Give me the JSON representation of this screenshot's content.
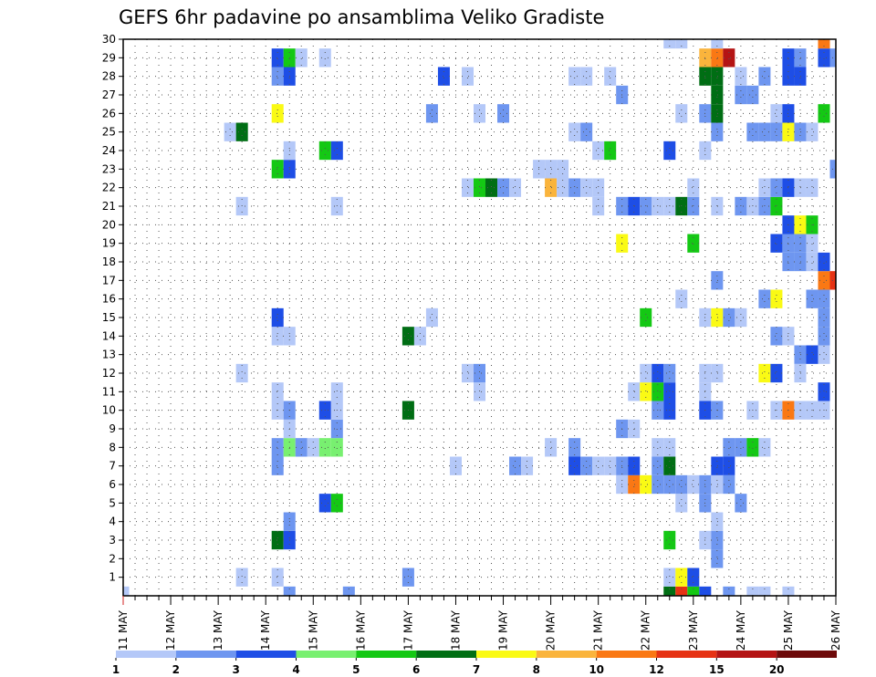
{
  "chart_data": {
    "type": "heatmap",
    "title": "GEFS 6hr padavine po ansamblima Veliko Gradiste",
    "xlabel": "",
    "ylabel": "",
    "x_start_label": "11 MAY",
    "x_tick_labels": [
      "11 MAY",
      "12 MAY",
      "13 MAY",
      "14 MAY",
      "15 MAY",
      "16 MAY",
      "17 MAY",
      "18 MAY",
      "19 MAY",
      "20 MAY",
      "21 MAY",
      "22 MAY",
      "23 MAY",
      "24 MAY",
      "25 MAY",
      "26 MAY"
    ],
    "x_steps_per_day": 4,
    "x_range_steps": [
      0,
      60
    ],
    "y_tick_labels": [
      "1",
      "2",
      "3",
      "4",
      "5",
      "6",
      "7",
      "8",
      "9",
      "10",
      "11",
      "12",
      "13",
      "14",
      "15",
      "16",
      "17",
      "18",
      "19",
      "20",
      "21",
      "22",
      "23",
      "24",
      "25",
      "26",
      "27",
      "28",
      "29",
      "30"
    ],
    "y_range": [
      0,
      30
    ],
    "grid": true,
    "legend": {
      "placement": "bottom",
      "labels": [
        "1",
        "2",
        "3",
        "4",
        "5",
        "6",
        "7",
        "8",
        "10",
        "12",
        "15",
        "20"
      ],
      "colors": [
        "#b4c8f8",
        "#6e96f0",
        "#1e4ee6",
        "#78f070",
        "#14c814",
        "#006e14",
        "#fafa14",
        "#fab43c",
        "#fa7814",
        "#e63214",
        "#b41414",
        "#6e0a0a"
      ]
    },
    "cells_note_units": "x = 6-hour step index from 11 MAY 00z, y = ensemble member, c = colour class index",
    "cells": [
      {
        "x": 0,
        "y": 0,
        "c": 0
      },
      {
        "x": 14,
        "y": 0,
        "c": 1
      },
      {
        "x": 19,
        "y": 0,
        "c": 1
      },
      {
        "x": 46,
        "y": 0,
        "c": 5
      },
      {
        "x": 47,
        "y": 0,
        "c": 9
      },
      {
        "x": 48,
        "y": 0,
        "c": 4
      },
      {
        "x": 49,
        "y": 0,
        "c": 2
      },
      {
        "x": 51,
        "y": 0,
        "c": 1
      },
      {
        "x": 53,
        "y": 0,
        "c": 0
      },
      {
        "x": 54,
        "y": 0,
        "c": 0
      },
      {
        "x": 56,
        "y": 0,
        "c": 0
      },
      {
        "x": 10,
        "y": 1,
        "c": 0
      },
      {
        "x": 13,
        "y": 1,
        "c": 0
      },
      {
        "x": 24,
        "y": 1,
        "c": 1
      },
      {
        "x": 46,
        "y": 1,
        "c": 0
      },
      {
        "x": 47,
        "y": 1,
        "c": 6
      },
      {
        "x": 48,
        "y": 1,
        "c": 2
      },
      {
        "x": 50,
        "y": 2,
        "c": 1
      },
      {
        "x": 13,
        "y": 3,
        "c": 5
      },
      {
        "x": 14,
        "y": 3,
        "c": 2
      },
      {
        "x": 46,
        "y": 3,
        "c": 4
      },
      {
        "x": 49,
        "y": 3,
        "c": 0
      },
      {
        "x": 50,
        "y": 3,
        "c": 1
      },
      {
        "x": 14,
        "y": 4,
        "c": 1
      },
      {
        "x": 50,
        "y": 4,
        "c": 0
      },
      {
        "x": 17,
        "y": 5,
        "c": 2
      },
      {
        "x": 18,
        "y": 5,
        "c": 4
      },
      {
        "x": 47,
        "y": 5,
        "c": 0
      },
      {
        "x": 49,
        "y": 5,
        "c": 1
      },
      {
        "x": 52,
        "y": 5,
        "c": 1
      },
      {
        "x": 42,
        "y": 6,
        "c": 0
      },
      {
        "x": 43,
        "y": 6,
        "c": 8
      },
      {
        "x": 44,
        "y": 6,
        "c": 6
      },
      {
        "x": 45,
        "y": 6,
        "c": 1
      },
      {
        "x": 46,
        "y": 6,
        "c": 1
      },
      {
        "x": 47,
        "y": 6,
        "c": 1
      },
      {
        "x": 48,
        "y": 6,
        "c": 0
      },
      {
        "x": 49,
        "y": 6,
        "c": 1
      },
      {
        "x": 50,
        "y": 6,
        "c": 0
      },
      {
        "x": 51,
        "y": 6,
        "c": 1
      },
      {
        "x": 13,
        "y": 7,
        "c": 1
      },
      {
        "x": 28,
        "y": 7,
        "c": 0
      },
      {
        "x": 33,
        "y": 7,
        "c": 1
      },
      {
        "x": 34,
        "y": 7,
        "c": 0
      },
      {
        "x": 38,
        "y": 7,
        "c": 2
      },
      {
        "x": 39,
        "y": 7,
        "c": 1
      },
      {
        "x": 40,
        "y": 7,
        "c": 0
      },
      {
        "x": 41,
        "y": 7,
        "c": 0
      },
      {
        "x": 42,
        "y": 7,
        "c": 1
      },
      {
        "x": 43,
        "y": 7,
        "c": 2
      },
      {
        "x": 45,
        "y": 7,
        "c": 1
      },
      {
        "x": 46,
        "y": 7,
        "c": 5
      },
      {
        "x": 50,
        "y": 7,
        "c": 2
      },
      {
        "x": 51,
        "y": 7,
        "c": 2
      },
      {
        "x": 13,
        "y": 8,
        "c": 1
      },
      {
        "x": 14,
        "y": 8,
        "c": 3
      },
      {
        "x": 15,
        "y": 8,
        "c": 1
      },
      {
        "x": 16,
        "y": 8,
        "c": 0
      },
      {
        "x": 17,
        "y": 8,
        "c": 3
      },
      {
        "x": 18,
        "y": 8,
        "c": 3
      },
      {
        "x": 36,
        "y": 8,
        "c": 0
      },
      {
        "x": 38,
        "y": 8,
        "c": 1
      },
      {
        "x": 45,
        "y": 8,
        "c": 0
      },
      {
        "x": 46,
        "y": 8,
        "c": 0
      },
      {
        "x": 51,
        "y": 8,
        "c": 1
      },
      {
        "x": 52,
        "y": 8,
        "c": 1
      },
      {
        "x": 53,
        "y": 8,
        "c": 4
      },
      {
        "x": 54,
        "y": 8,
        "c": 0
      },
      {
        "x": 14,
        "y": 9,
        "c": 0
      },
      {
        "x": 18,
        "y": 9,
        "c": 1
      },
      {
        "x": 42,
        "y": 9,
        "c": 1
      },
      {
        "x": 43,
        "y": 9,
        "c": 0
      },
      {
        "x": 13,
        "y": 10,
        "c": 0
      },
      {
        "x": 14,
        "y": 10,
        "c": 1
      },
      {
        "x": 17,
        "y": 10,
        "c": 2
      },
      {
        "x": 18,
        "y": 10,
        "c": 0
      },
      {
        "x": 24,
        "y": 10,
        "c": 5
      },
      {
        "x": 45,
        "y": 10,
        "c": 1
      },
      {
        "x": 46,
        "y": 10,
        "c": 2
      },
      {
        "x": 49,
        "y": 10,
        "c": 2
      },
      {
        "x": 50,
        "y": 10,
        "c": 1
      },
      {
        "x": 53,
        "y": 10,
        "c": 0
      },
      {
        "x": 55,
        "y": 10,
        "c": 0
      },
      {
        "x": 56,
        "y": 10,
        "c": 8
      },
      {
        "x": 57,
        "y": 10,
        "c": 0
      },
      {
        "x": 58,
        "y": 10,
        "c": 0
      },
      {
        "x": 59,
        "y": 10,
        "c": 0
      },
      {
        "x": 13,
        "y": 11,
        "c": 0
      },
      {
        "x": 18,
        "y": 11,
        "c": 0
      },
      {
        "x": 30,
        "y": 11,
        "c": 0
      },
      {
        "x": 43,
        "y": 11,
        "c": 0
      },
      {
        "x": 44,
        "y": 11,
        "c": 6
      },
      {
        "x": 45,
        "y": 11,
        "c": 4
      },
      {
        "x": 46,
        "y": 11,
        "c": 2
      },
      {
        "x": 49,
        "y": 11,
        "c": 0
      },
      {
        "x": 59,
        "y": 11,
        "c": 2
      },
      {
        "x": 10,
        "y": 12,
        "c": 0
      },
      {
        "x": 29,
        "y": 12,
        "c": 0
      },
      {
        "x": 30,
        "y": 12,
        "c": 1
      },
      {
        "x": 44,
        "y": 12,
        "c": 0
      },
      {
        "x": 45,
        "y": 12,
        "c": 2
      },
      {
        "x": 46,
        "y": 12,
        "c": 1
      },
      {
        "x": 49,
        "y": 12,
        "c": 0
      },
      {
        "x": 50,
        "y": 12,
        "c": 0
      },
      {
        "x": 54,
        "y": 12,
        "c": 6
      },
      {
        "x": 55,
        "y": 12,
        "c": 2
      },
      {
        "x": 57,
        "y": 12,
        "c": 0
      },
      {
        "x": 57,
        "y": 13,
        "c": 1
      },
      {
        "x": 58,
        "y": 13,
        "c": 2
      },
      {
        "x": 59,
        "y": 13,
        "c": 0
      },
      {
        "x": 13,
        "y": 14,
        "c": 0
      },
      {
        "x": 14,
        "y": 14,
        "c": 0
      },
      {
        "x": 24,
        "y": 14,
        "c": 5
      },
      {
        "x": 25,
        "y": 14,
        "c": 0
      },
      {
        "x": 55,
        "y": 14,
        "c": 1
      },
      {
        "x": 56,
        "y": 14,
        "c": 0
      },
      {
        "x": 59,
        "y": 14,
        "c": 1
      },
      {
        "x": 13,
        "y": 15,
        "c": 2
      },
      {
        "x": 26,
        "y": 15,
        "c": 0
      },
      {
        "x": 44,
        "y": 15,
        "c": 4
      },
      {
        "x": 49,
        "y": 15,
        "c": 0
      },
      {
        "x": 50,
        "y": 15,
        "c": 6
      },
      {
        "x": 51,
        "y": 15,
        "c": 1
      },
      {
        "x": 52,
        "y": 15,
        "c": 0
      },
      {
        "x": 59,
        "y": 15,
        "c": 1
      },
      {
        "x": 47,
        "y": 16,
        "c": 0
      },
      {
        "x": 54,
        "y": 16,
        "c": 1
      },
      {
        "x": 55,
        "y": 16,
        "c": 6
      },
      {
        "x": 58,
        "y": 16,
        "c": 1
      },
      {
        "x": 59,
        "y": 16,
        "c": 1
      },
      {
        "x": 50,
        "y": 17,
        "c": 1
      },
      {
        "x": 59,
        "y": 17,
        "c": 8
      },
      {
        "x": 60,
        "y": 17,
        "c": 9
      },
      {
        "x": 56,
        "y": 18,
        "c": 1
      },
      {
        "x": 57,
        "y": 18,
        "c": 1
      },
      {
        "x": 58,
        "y": 18,
        "c": 0
      },
      {
        "x": 59,
        "y": 18,
        "c": 2
      },
      {
        "x": 42,
        "y": 19,
        "c": 6
      },
      {
        "x": 48,
        "y": 19,
        "c": 4
      },
      {
        "x": 55,
        "y": 19,
        "c": 2
      },
      {
        "x": 56,
        "y": 19,
        "c": 1
      },
      {
        "x": 57,
        "y": 19,
        "c": 1
      },
      {
        "x": 58,
        "y": 19,
        "c": 0
      },
      {
        "x": 56,
        "y": 20,
        "c": 2
      },
      {
        "x": 57,
        "y": 20,
        "c": 6
      },
      {
        "x": 58,
        "y": 20,
        "c": 4
      },
      {
        "x": 10,
        "y": 21,
        "c": 0
      },
      {
        "x": 18,
        "y": 21,
        "c": 0
      },
      {
        "x": 40,
        "y": 21,
        "c": 0
      },
      {
        "x": 42,
        "y": 21,
        "c": 1
      },
      {
        "x": 43,
        "y": 21,
        "c": 2
      },
      {
        "x": 44,
        "y": 21,
        "c": 1
      },
      {
        "x": 45,
        "y": 21,
        "c": 0
      },
      {
        "x": 46,
        "y": 21,
        "c": 0
      },
      {
        "x": 47,
        "y": 21,
        "c": 5
      },
      {
        "x": 48,
        "y": 21,
        "c": 1
      },
      {
        "x": 50,
        "y": 21,
        "c": 0
      },
      {
        "x": 52,
        "y": 21,
        "c": 1
      },
      {
        "x": 53,
        "y": 21,
        "c": 0
      },
      {
        "x": 54,
        "y": 21,
        "c": 1
      },
      {
        "x": 55,
        "y": 21,
        "c": 4
      },
      {
        "x": 29,
        "y": 22,
        "c": 0
      },
      {
        "x": 30,
        "y": 22,
        "c": 4
      },
      {
        "x": 31,
        "y": 22,
        "c": 5
      },
      {
        "x": 32,
        "y": 22,
        "c": 1
      },
      {
        "x": 33,
        "y": 22,
        "c": 0
      },
      {
        "x": 36,
        "y": 22,
        "c": 7
      },
      {
        "x": 37,
        "y": 22,
        "c": 0
      },
      {
        "x": 38,
        "y": 22,
        "c": 1
      },
      {
        "x": 39,
        "y": 22,
        "c": 0
      },
      {
        "x": 40,
        "y": 22,
        "c": 0
      },
      {
        "x": 48,
        "y": 22,
        "c": 0
      },
      {
        "x": 54,
        "y": 22,
        "c": 0
      },
      {
        "x": 55,
        "y": 22,
        "c": 1
      },
      {
        "x": 56,
        "y": 22,
        "c": 2
      },
      {
        "x": 57,
        "y": 22,
        "c": 0
      },
      {
        "x": 58,
        "y": 22,
        "c": 0
      },
      {
        "x": 13,
        "y": 23,
        "c": 4
      },
      {
        "x": 14,
        "y": 23,
        "c": 2
      },
      {
        "x": 35,
        "y": 23,
        "c": 0
      },
      {
        "x": 36,
        "y": 23,
        "c": 0
      },
      {
        "x": 37,
        "y": 23,
        "c": 0
      },
      {
        "x": 60,
        "y": 23,
        "c": 1
      },
      {
        "x": 14,
        "y": 24,
        "c": 0
      },
      {
        "x": 17,
        "y": 24,
        "c": 4
      },
      {
        "x": 18,
        "y": 24,
        "c": 2
      },
      {
        "x": 40,
        "y": 24,
        "c": 0
      },
      {
        "x": 41,
        "y": 24,
        "c": 4
      },
      {
        "x": 46,
        "y": 24,
        "c": 2
      },
      {
        "x": 49,
        "y": 24,
        "c": 0
      },
      {
        "x": 9,
        "y": 25,
        "c": 0
      },
      {
        "x": 10,
        "y": 25,
        "c": 5
      },
      {
        "x": 38,
        "y": 25,
        "c": 0
      },
      {
        "x": 39,
        "y": 25,
        "c": 1
      },
      {
        "x": 50,
        "y": 25,
        "c": 1
      },
      {
        "x": 53,
        "y": 25,
        "c": 1
      },
      {
        "x": 54,
        "y": 25,
        "c": 1
      },
      {
        "x": 55,
        "y": 25,
        "c": 1
      },
      {
        "x": 56,
        "y": 25,
        "c": 6
      },
      {
        "x": 57,
        "y": 25,
        "c": 1
      },
      {
        "x": 58,
        "y": 25,
        "c": 0
      },
      {
        "x": 13,
        "y": 26,
        "c": 6
      },
      {
        "x": 26,
        "y": 26,
        "c": 1
      },
      {
        "x": 30,
        "y": 26,
        "c": 0
      },
      {
        "x": 32,
        "y": 26,
        "c": 1
      },
      {
        "x": 47,
        "y": 26,
        "c": 0
      },
      {
        "x": 49,
        "y": 26,
        "c": 1
      },
      {
        "x": 50,
        "y": 26,
        "c": 5
      },
      {
        "x": 55,
        "y": 26,
        "c": 0
      },
      {
        "x": 56,
        "y": 26,
        "c": 2
      },
      {
        "x": 59,
        "y": 26,
        "c": 4
      },
      {
        "x": 42,
        "y": 27,
        "c": 1
      },
      {
        "x": 50,
        "y": 27,
        "c": 5
      },
      {
        "x": 52,
        "y": 27,
        "c": 1
      },
      {
        "x": 53,
        "y": 27,
        "c": 1
      },
      {
        "x": 13,
        "y": 28,
        "c": 1
      },
      {
        "x": 14,
        "y": 28,
        "c": 2
      },
      {
        "x": 27,
        "y": 28,
        "c": 2
      },
      {
        "x": 29,
        "y": 28,
        "c": 0
      },
      {
        "x": 38,
        "y": 28,
        "c": 0
      },
      {
        "x": 39,
        "y": 28,
        "c": 0
      },
      {
        "x": 41,
        "y": 28,
        "c": 0
      },
      {
        "x": 49,
        "y": 28,
        "c": 5
      },
      {
        "x": 50,
        "y": 28,
        "c": 5
      },
      {
        "x": 52,
        "y": 28,
        "c": 0
      },
      {
        "x": 54,
        "y": 28,
        "c": 1
      },
      {
        "x": 56,
        "y": 28,
        "c": 2
      },
      {
        "x": 57,
        "y": 28,
        "c": 2
      },
      {
        "x": 13,
        "y": 29,
        "c": 2
      },
      {
        "x": 14,
        "y": 29,
        "c": 4
      },
      {
        "x": 15,
        "y": 29,
        "c": 0
      },
      {
        "x": 17,
        "y": 29,
        "c": 0
      },
      {
        "x": 49,
        "y": 29,
        "c": 7
      },
      {
        "x": 50,
        "y": 29,
        "c": 8
      },
      {
        "x": 51,
        "y": 29,
        "c": 10
      },
      {
        "x": 56,
        "y": 29,
        "c": 2
      },
      {
        "x": 57,
        "y": 29,
        "c": 1
      },
      {
        "x": 59,
        "y": 29,
        "c": 2
      },
      {
        "x": 60,
        "y": 29,
        "c": 1
      },
      {
        "x": 46,
        "y": 30,
        "c": 0
      },
      {
        "x": 47,
        "y": 30,
        "c": 0
      },
      {
        "x": 50,
        "y": 30,
        "c": 0
      },
      {
        "x": 59,
        "y": 30,
        "c": 8
      }
    ]
  }
}
